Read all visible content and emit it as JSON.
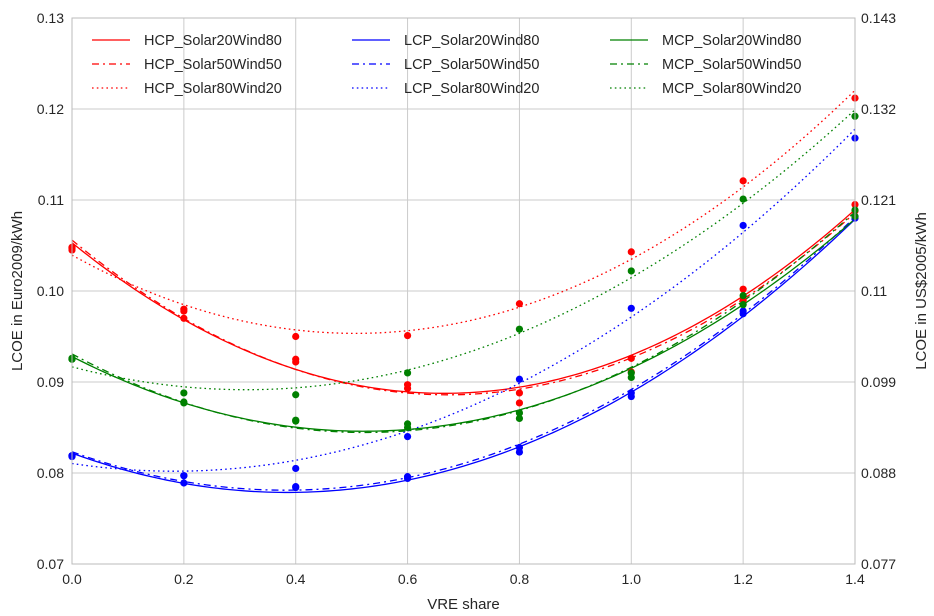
{
  "chart_data": {
    "type": "line",
    "xlabel": "VRE share",
    "ylabel_left": "LCOE in Euro2009/kWh",
    "ylabel_right": "LCOE in US$2005/kWh",
    "xlim": [
      0.0,
      1.4
    ],
    "ylim": [
      0.07,
      0.13
    ],
    "grid": true,
    "legend_position": "top",
    "x_ticks": [
      0.0,
      0.2,
      0.4,
      0.6,
      0.8,
      1.0,
      1.2,
      1.4
    ],
    "x_tick_labels": [
      "0.0",
      "0.2",
      "0.4",
      "0.6",
      "0.8",
      "1.0",
      "1.2",
      "1.4"
    ],
    "y_ticks": [
      0.07,
      0.08,
      0.09,
      0.1,
      0.11,
      0.12,
      0.13
    ],
    "y_tick_labels": [
      "0.07",
      "0.08",
      "0.09",
      "0.10",
      "0.11",
      "0.12",
      "0.13"
    ],
    "y_right_tick_labels": [
      "0.077",
      "0.088",
      "0.099",
      "0.11",
      "0.121",
      "0.132",
      "0.143"
    ],
    "x": [
      0.0,
      0.2,
      0.4,
      0.6,
      0.8,
      1.0,
      1.2,
      1.4
    ],
    "series": [
      {
        "name": "HCP_Solar20Wind80",
        "color": "#ff0000",
        "line_style": "solid",
        "values": [
          0.1048,
          0.097,
          0.0922,
          0.0893,
          0.0888,
          0.0926,
          0.099,
          0.1095
        ]
      },
      {
        "name": "HCP_Solar50Wind50",
        "color": "#ff0000",
        "line_style": "dashdot",
        "values": [
          0.1045,
          0.0978,
          0.0925,
          0.0897,
          0.0877,
          0.0911,
          0.1002,
          0.1088
        ]
      },
      {
        "name": "HCP_Solar80Wind20",
        "color": "#ff0000",
        "line_style": "dotted",
        "values": [
          0.1047,
          0.098,
          0.095,
          0.0951,
          0.0986,
          0.1043,
          0.1121,
          0.1212
        ]
      },
      {
        "name": "LCP_Solar20Wind80",
        "color": "#0000ff",
        "line_style": "solid",
        "values": [
          0.0819,
          0.0789,
          0.0784,
          0.0796,
          0.0823,
          0.0884,
          0.0975,
          0.108
        ]
      },
      {
        "name": "LCP_Solar50Wind50",
        "color": "#0000ff",
        "line_style": "dashdot",
        "values": [
          0.0818,
          0.0797,
          0.0785,
          0.0794,
          0.0828,
          0.0888,
          0.0978,
          0.1082
        ]
      },
      {
        "name": "LCP_Solar80Wind20",
        "color": "#0000ff",
        "line_style": "dotted",
        "values": [
          0.0819,
          0.0797,
          0.0805,
          0.084,
          0.0903,
          0.0981,
          0.1072,
          0.1168
        ]
      },
      {
        "name": "MCP_Solar20Wind80",
        "color": "#008000",
        "line_style": "solid",
        "values": [
          0.0925,
          0.0877,
          0.0857,
          0.085,
          0.0866,
          0.091,
          0.0985,
          0.1082
        ]
      },
      {
        "name": "MCP_Solar50Wind50",
        "color": "#008000",
        "line_style": "dashdot",
        "values": [
          0.0926,
          0.0878,
          0.0858,
          0.0854,
          0.086,
          0.0905,
          0.0995,
          0.1089
        ]
      },
      {
        "name": "MCP_Solar80Wind20",
        "color": "#008000",
        "line_style": "dotted",
        "values": [
          0.0925,
          0.0888,
          0.0886,
          0.091,
          0.0958,
          0.1022,
          0.1101,
          0.1192
        ]
      }
    ]
  }
}
